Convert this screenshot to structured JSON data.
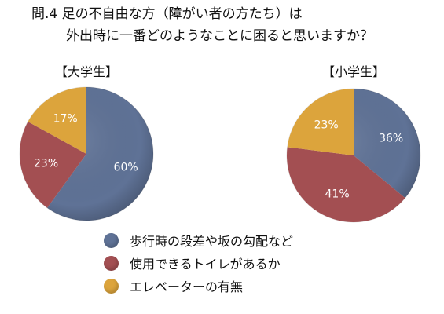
{
  "question": {
    "line1": "問.4 足の不自由な方（障がい者の方たち）は",
    "line2": "外出時に一番どのようなことに困ると思いますか？"
  },
  "colors": {
    "series_0": "#5f7296",
    "series_1": "#a34f52",
    "series_2": "#dca43c"
  },
  "chart_data": [
    {
      "type": "pie",
      "title": "【大学生】",
      "categories": [
        "歩行時の段差や坂の勾配など",
        "使用できるトイレがあるか",
        "エレベーターの有無"
      ],
      "values": [
        60,
        23,
        17
      ],
      "labels": [
        "60%",
        "23%",
        "17%"
      ],
      "start_angle_deg": 0
    },
    {
      "type": "pie",
      "title": "【小学生】",
      "categories": [
        "歩行時の段差や坂の勾配など",
        "使用できるトイレがあるか",
        "エレベーターの有無"
      ],
      "values": [
        36,
        41,
        23
      ],
      "labels": [
        "36%",
        "41%",
        "23%"
      ],
      "start_angle_deg": 0
    }
  ],
  "legend": [
    {
      "label": "歩行時の段差や坂の勾配など",
      "color": "#5f7296"
    },
    {
      "label": "使用できるトイレがあるか",
      "color": "#a34f52"
    },
    {
      "label": "エレベーターの有無",
      "color": "#dca43c"
    }
  ]
}
